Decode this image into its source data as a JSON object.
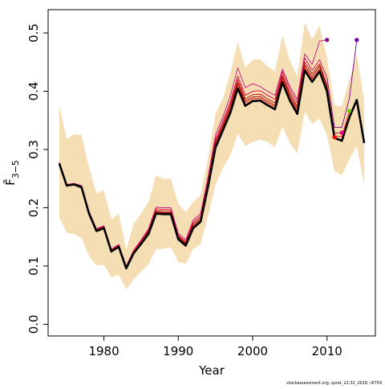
{
  "chart_data": {
    "type": "line",
    "title": "",
    "xlabel": "Year",
    "ylabel": "F̄",
    "ylabel_subscript": "3−5",
    "xlim": [
      1972.5,
      2016.5
    ],
    "ylim": [
      -0.02,
      0.54
    ],
    "x_ticks": [
      1980,
      1990,
      2000,
      2010
    ],
    "x_tick_labels": [
      "1980",
      "1990",
      "2000",
      "2010"
    ],
    "y_ticks": [
      0.0,
      0.1,
      0.2,
      0.3,
      0.4,
      0.5
    ],
    "y_tick_labels": [
      "0.0",
      "0.1",
      "0.2",
      "0.3",
      "0.4",
      "0.5"
    ],
    "grid": false,
    "legend": "none",
    "credit": "stockassessment.org, sprat_22-32_2016, r6759",
    "colors": {
      "band": "#f5deb3",
      "main": "#000000",
      "retro": [
        "#8b0000",
        "#c00000",
        "#ff0000",
        "#e0004a",
        "#c71585",
        "#800080"
      ]
    },
    "confidence_band": {
      "x": [
        1974,
        1975,
        1976,
        1977,
        1978,
        1979,
        1980,
        1981,
        1982,
        1983,
        1984,
        1985,
        1986,
        1987,
        1988,
        1989,
        1990,
        1991,
        1992,
        1993,
        1994,
        1995,
        1996,
        1997,
        1998,
        1999,
        2000,
        2001,
        2002,
        2003,
        2004,
        2005,
        2006,
        2007,
        2008,
        2009,
        2010,
        2011,
        2012,
        2013,
        2014,
        2015
      ],
      "lower": [
        0.183,
        0.157,
        0.155,
        0.148,
        0.117,
        0.101,
        0.102,
        0.08,
        0.085,
        0.06,
        0.077,
        0.09,
        0.103,
        0.128,
        0.13,
        0.132,
        0.107,
        0.104,
        0.129,
        0.138,
        0.185,
        0.239,
        0.268,
        0.29,
        0.327,
        0.306,
        0.313,
        0.317,
        0.313,
        0.304,
        0.339,
        0.311,
        0.293,
        0.365,
        0.344,
        0.353,
        0.324,
        0.263,
        0.256,
        0.283,
        0.306,
        0.239
      ],
      "upper": [
        0.375,
        0.318,
        0.326,
        0.325,
        0.269,
        0.225,
        0.23,
        0.18,
        0.19,
        0.128,
        0.172,
        0.19,
        0.21,
        0.255,
        0.25,
        0.25,
        0.207,
        0.192,
        0.21,
        0.222,
        0.285,
        0.362,
        0.388,
        0.431,
        0.485,
        0.44,
        0.454,
        0.455,
        0.443,
        0.434,
        0.496,
        0.453,
        0.425,
        0.518,
        0.489,
        0.513,
        0.457,
        0.376,
        0.374,
        0.42,
        0.462,
        0.384
      ]
    },
    "series": [
      {
        "x": [
          1974,
          1975,
          1976,
          1977,
          1978,
          1979,
          1980,
          1981,
          1982,
          1983,
          1984,
          1985,
          1986,
          1987,
          1988,
          1989,
          1990,
          1991,
          1992,
          1993,
          1994,
          1995,
          1996,
          1997,
          1998,
          1999,
          2000,
          2001,
          2002,
          2003,
          2004,
          2005,
          2006,
          2007,
          2008,
          2009,
          2010,
          2011,
          2012,
          2013,
          2014,
          2015
        ],
        "values": [
          0.276,
          0.238,
          0.24,
          0.235,
          0.19,
          0.16,
          0.165,
          0.125,
          0.133,
          0.096,
          0.122,
          0.138,
          0.155,
          0.19,
          0.189,
          0.189,
          0.146,
          0.135,
          0.165,
          0.176,
          0.236,
          0.303,
          0.333,
          0.363,
          0.405,
          0.375,
          0.383,
          0.384,
          0.376,
          0.369,
          0.415,
          0.384,
          0.361,
          0.436,
          0.416,
          0.434,
          0.399,
          0.32,
          0.315,
          0.355,
          0.385,
          0.311
        ]
      },
      {
        "x": [
          1974,
          1975,
          1976,
          1977,
          1978,
          1979,
          1980,
          1981,
          1982,
          1983,
          1984,
          1985,
          1986,
          1987,
          1988,
          1989,
          1990,
          1991,
          1992,
          1993,
          1994,
          1995,
          1996,
          1997,
          1998,
          1999,
          2000,
          2001,
          2002,
          2003,
          2004,
          2005,
          2006,
          2007,
          2008,
          2009,
          2010,
          2011
        ],
        "values": [
          0.276,
          0.238,
          0.24,
          0.236,
          0.191,
          0.161,
          0.166,
          0.126,
          0.134,
          0.097,
          0.123,
          0.14,
          0.158,
          0.193,
          0.192,
          0.192,
          0.149,
          0.138,
          0.169,
          0.18,
          0.241,
          0.31,
          0.34,
          0.372,
          0.415,
          0.383,
          0.39,
          0.391,
          0.383,
          0.376,
          0.424,
          0.393,
          0.37,
          0.445,
          0.425,
          0.443,
          0.407,
          0.321
        ]
      },
      {
        "x": [
          1974,
          1975,
          1976,
          1977,
          1978,
          1979,
          1980,
          1981,
          1982,
          1983,
          1984,
          1985,
          1986,
          1987,
          1988,
          1989,
          1990,
          1991,
          1992,
          1993,
          1994,
          1995,
          1996,
          1997,
          1998,
          1999,
          2000,
          2001,
          2002,
          2003,
          2004,
          2005,
          2006,
          2007,
          2008,
          2009,
          2010,
          2011,
          2012
        ],
        "values": [
          0.277,
          0.238,
          0.24,
          0.236,
          0.192,
          0.162,
          0.167,
          0.127,
          0.135,
          0.098,
          0.124,
          0.141,
          0.16,
          0.195,
          0.194,
          0.194,
          0.151,
          0.14,
          0.172,
          0.183,
          0.244,
          0.314,
          0.344,
          0.377,
          0.42,
          0.387,
          0.394,
          0.395,
          0.387,
          0.38,
          0.428,
          0.397,
          0.374,
          0.45,
          0.43,
          0.447,
          0.411,
          0.328,
          0.329
        ]
      },
      {
        "x": [
          1974,
          1975,
          1976,
          1977,
          1978,
          1979,
          1980,
          1981,
          1982,
          1983,
          1984,
          1985,
          1986,
          1987,
          1988,
          1989,
          1990,
          1991,
          1992,
          1993,
          1994,
          1995,
          1996,
          1997,
          1998,
          1999,
          2000,
          2001,
          2002,
          2003,
          2004,
          2005,
          2006,
          2007,
          2008,
          2009,
          2010,
          2011,
          2012,
          2013
        ],
        "values": [
          0.276,
          0.238,
          0.24,
          0.235,
          0.191,
          0.161,
          0.166,
          0.126,
          0.134,
          0.097,
          0.123,
          0.139,
          0.157,
          0.192,
          0.191,
          0.191,
          0.148,
          0.137,
          0.167,
          0.178,
          0.239,
          0.307,
          0.337,
          0.368,
          0.411,
          0.38,
          0.387,
          0.388,
          0.38,
          0.373,
          0.42,
          0.389,
          0.366,
          0.441,
          0.421,
          0.438,
          0.403,
          0.323,
          0.322,
          0.366
        ]
      },
      {
        "x": [
          1974,
          1975,
          1976,
          1977,
          1978,
          1979,
          1980,
          1981,
          1982,
          1983,
          1984,
          1985,
          1986,
          1987,
          1988,
          1989,
          1990,
          1991,
          1992,
          1993,
          1994,
          1995,
          1996,
          1997,
          1998,
          1999,
          2000,
          2001,
          2002,
          2003,
          2004,
          2005,
          2006,
          2007,
          2008,
          2009,
          2010
        ],
        "values": [
          0.277,
          0.239,
          0.241,
          0.237,
          0.193,
          0.163,
          0.168,
          0.128,
          0.136,
          0.099,
          0.126,
          0.143,
          0.162,
          0.198,
          0.197,
          0.197,
          0.153,
          0.142,
          0.175,
          0.186,
          0.248,
          0.318,
          0.349,
          0.382,
          0.426,
          0.393,
          0.4,
          0.401,
          0.393,
          0.386,
          0.434,
          0.403,
          0.38,
          0.457,
          0.436,
          0.454,
          0.423
        ]
      },
      {
        "x": [
          1974,
          1975,
          1976,
          1977,
          1978,
          1979,
          1980,
          1981,
          1982,
          1983,
          1984,
          1985,
          1986,
          1987,
          1988,
          1989,
          1990,
          1991,
          1992,
          1993,
          1994,
          1995,
          1996,
          1997,
          1998,
          1999,
          2000,
          2001,
          2002,
          2003,
          2004,
          2005,
          2006,
          2007,
          2008,
          2009,
          2010
        ],
        "values": [
          0.278,
          0.24,
          0.242,
          0.238,
          0.194,
          0.164,
          0.169,
          0.129,
          0.137,
          0.1,
          0.127,
          0.145,
          0.164,
          0.201,
          0.2,
          0.2,
          0.156,
          0.145,
          0.179,
          0.19,
          0.253,
          0.325,
          0.356,
          0.392,
          0.44,
          0.406,
          0.413,
          0.408,
          0.4,
          0.393,
          0.438,
          0.408,
          0.386,
          0.464,
          0.446,
          0.486,
          0.488
        ]
      },
      {
        "x": [
          2010,
          2011,
          2012,
          2013,
          2014
        ],
        "values": [
          0.423,
          0.338,
          0.338,
          0.388,
          0.488
        ]
      }
    ],
    "end_points": [
      {
        "x": 2010,
        "y": 0.488,
        "color": "#800080"
      },
      {
        "x": 2011,
        "y": 0.321,
        "color": "#ff0000"
      },
      {
        "x": 2012,
        "y": 0.329,
        "color": "#e0008a"
      },
      {
        "x": 2013,
        "y": 0.366,
        "color": "#66cc00"
      },
      {
        "x": 2014,
        "y": 0.488,
        "color": "#6a00a8"
      }
    ]
  }
}
